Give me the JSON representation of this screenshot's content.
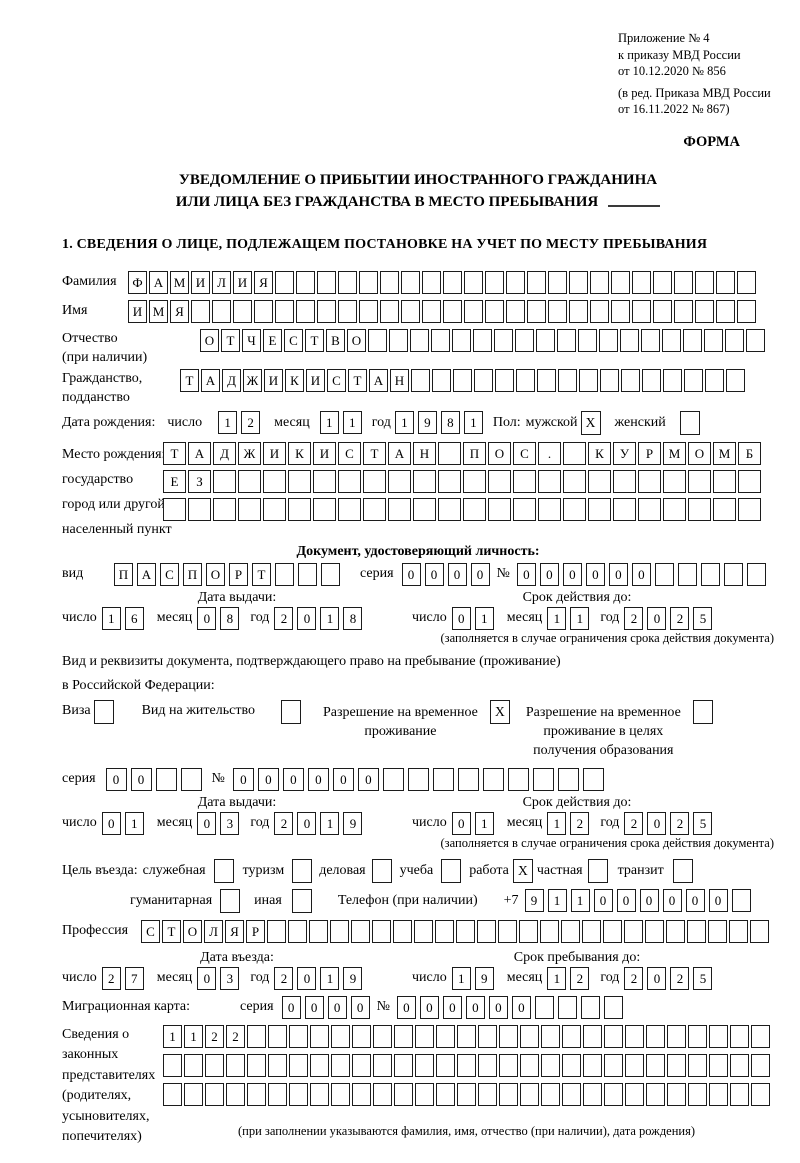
{
  "meta": {
    "appendix_lines": [
      "Приложение № 4",
      "к приказу МВД России",
      "от 10.12.2020 № 856"
    ],
    "revision_lines": [
      "(в ред. Приказа МВД России",
      "от 16.11.2022 № 867)"
    ],
    "form_word": "ФОРМА"
  },
  "title": {
    "line1": "УВЕДОМЛЕНИЕ О ПРИБЫТИИ ИНОСТРАННОГО ГРАЖДАНИНА",
    "line2": "ИЛИ ЛИЦА БЕЗ ГРАЖДАНСТВА В МЕСТО ПРЕБЫВАНИЯ"
  },
  "section1_heading": "1. СВЕДЕНИЯ О ЛИЦЕ, ПОДЛЕЖАЩЕМ ПОСТАНОВКЕ НА УЧЕТ ПО МЕСТУ ПРЕБЫВАНИЯ",
  "labels": {
    "day": "число",
    "month": "месяц",
    "year": "год",
    "series": "серия",
    "number": "№",
    "issue_date": "Дата выдачи:",
    "valid_until": "Срок действия до:",
    "restriction_note": "(заполняется в случае ограничения срока действия документа)"
  },
  "fields": {
    "surname": {
      "label": "Фамилия",
      "cells": {
        "n": 30,
        "v": "ФАМИЛИЯ"
      }
    },
    "given_name": {
      "label": "Имя",
      "cells": {
        "n": 30,
        "v": "ИМЯ"
      }
    },
    "patronymic": {
      "label1": "Отчество",
      "label2": "(при наличии)",
      "cells": {
        "n": 27,
        "v": "ОТЧЕСТВО"
      }
    },
    "citizenship": {
      "label1": "Гражданство,",
      "label2": "подданство",
      "cells": {
        "n": 27,
        "v": "ТАДЖИКИСТАН"
      }
    },
    "birth_date": {
      "label": "Дата рождения:",
      "day": {
        "n": 2,
        "v": "12"
      },
      "month": {
        "n": 2,
        "v": "11"
      },
      "year": {
        "n": 4,
        "v": "1981"
      }
    },
    "sex": {
      "label": "Пол:",
      "male_label": "мужской",
      "male": "X",
      "female_label": "женский",
      "female": ""
    },
    "birth_place": {
      "label1": "Место рождения:",
      "label2": "государство",
      "label3": "город или другой",
      "label4": "населенный пункт",
      "row1": {
        "n": 24,
        "v": "ТАДЖИКИСТАН ПОС. КУРМОМБ"
      },
      "row2": {
        "n": 24,
        "v": "ЕЗ"
      },
      "row3": {
        "n": 24,
        "v": ""
      }
    },
    "identity_doc": {
      "heading": "Документ, удостоверяющий личность:",
      "kind_label": "вид",
      "kind": {
        "n": 10,
        "v": "ПАСПОРТ"
      },
      "series": {
        "n": 4,
        "v": "0000"
      },
      "number": {
        "n": 11,
        "v": "000000"
      },
      "issue": {
        "day": {
          "n": 2,
          "v": "16"
        },
        "month": {
          "n": 2,
          "v": "08"
        },
        "year": {
          "n": 4,
          "v": "2018"
        }
      },
      "valid": {
        "day": {
          "n": 2,
          "v": "01"
        },
        "month": {
          "n": 2,
          "v": "11"
        },
        "year": {
          "n": 4,
          "v": "2025"
        }
      }
    },
    "residence_doc": {
      "line1": "Вид и реквизиты документа, подтверждающего право на пребывание (проживание)",
      "line2": "в Российской Федерации:",
      "visa_label": "Виза",
      "visa": "",
      "residence_permit_label": "Вид на жительство",
      "residence_permit": "",
      "rvp_label1": "Разрешение на временное",
      "rvp_label2": "проживание",
      "rvp": "X",
      "rvp_edu_label1": "Разрешение на временное",
      "rvp_edu_label2": "проживание в целях",
      "rvp_edu_label3": "получения образования",
      "rvp_edu": "",
      "series": {
        "n": 4,
        "v": "00"
      },
      "number": {
        "n": 15,
        "v": "000000"
      },
      "issue": {
        "day": {
          "n": 2,
          "v": "01"
        },
        "month": {
          "n": 2,
          "v": "03"
        },
        "year": {
          "n": 4,
          "v": "2019"
        }
      },
      "valid": {
        "day": {
          "n": 2,
          "v": "01"
        },
        "month": {
          "n": 2,
          "v": "12"
        },
        "year": {
          "n": 4,
          "v": "2025"
        }
      }
    },
    "purpose": {
      "label": "Цель въезда:",
      "options": [
        {
          "label": "служебная",
          "mark": ""
        },
        {
          "label": "туризм",
          "mark": ""
        },
        {
          "label": "деловая",
          "mark": ""
        },
        {
          "label": "учеба",
          "mark": ""
        },
        {
          "label": "работа",
          "mark": "X"
        },
        {
          "label": "частная",
          "mark": ""
        },
        {
          "label": "транзит",
          "mark": ""
        }
      ],
      "options2": [
        {
          "label": "гуманитарная",
          "mark": ""
        },
        {
          "label": "иная",
          "mark": ""
        }
      ]
    },
    "phone": {
      "label": "Телефон (при наличии)",
      "prefix": "+7",
      "cells": {
        "n": 10,
        "v": "911000000"
      }
    },
    "profession": {
      "label": "Профессия",
      "cells": {
        "n": 30,
        "v": "СТОЛЯР"
      }
    },
    "entry": {
      "date_label": "Дата въезда:",
      "stay_label": "Срок пребывания до:",
      "entry_date": {
        "day": {
          "n": 2,
          "v": "27"
        },
        "month": {
          "n": 2,
          "v": "03"
        },
        "year": {
          "n": 4,
          "v": "2019"
        }
      },
      "stay_until": {
        "day": {
          "n": 2,
          "v": "19"
        },
        "month": {
          "n": 2,
          "v": "12"
        },
        "year": {
          "n": 4,
          "v": "2025"
        }
      }
    },
    "migration_card": {
      "label": "Миграционная карта:",
      "series": {
        "n": 4,
        "v": "0000"
      },
      "number": {
        "n": 10,
        "v": "000000"
      }
    },
    "representatives": {
      "label_lines": [
        "Сведения о",
        "законных",
        "представителях",
        "(родителях,",
        "усыновителях,",
        "попечителях)"
      ],
      "row1": {
        "n": 29,
        "v": "1122"
      },
      "row2": {
        "n": 29,
        "v": ""
      },
      "row3": {
        "n": 29,
        "v": ""
      },
      "note": "(при заполнении указываются фамилия, имя, отчество (при наличии), дата рождения)"
    }
  }
}
